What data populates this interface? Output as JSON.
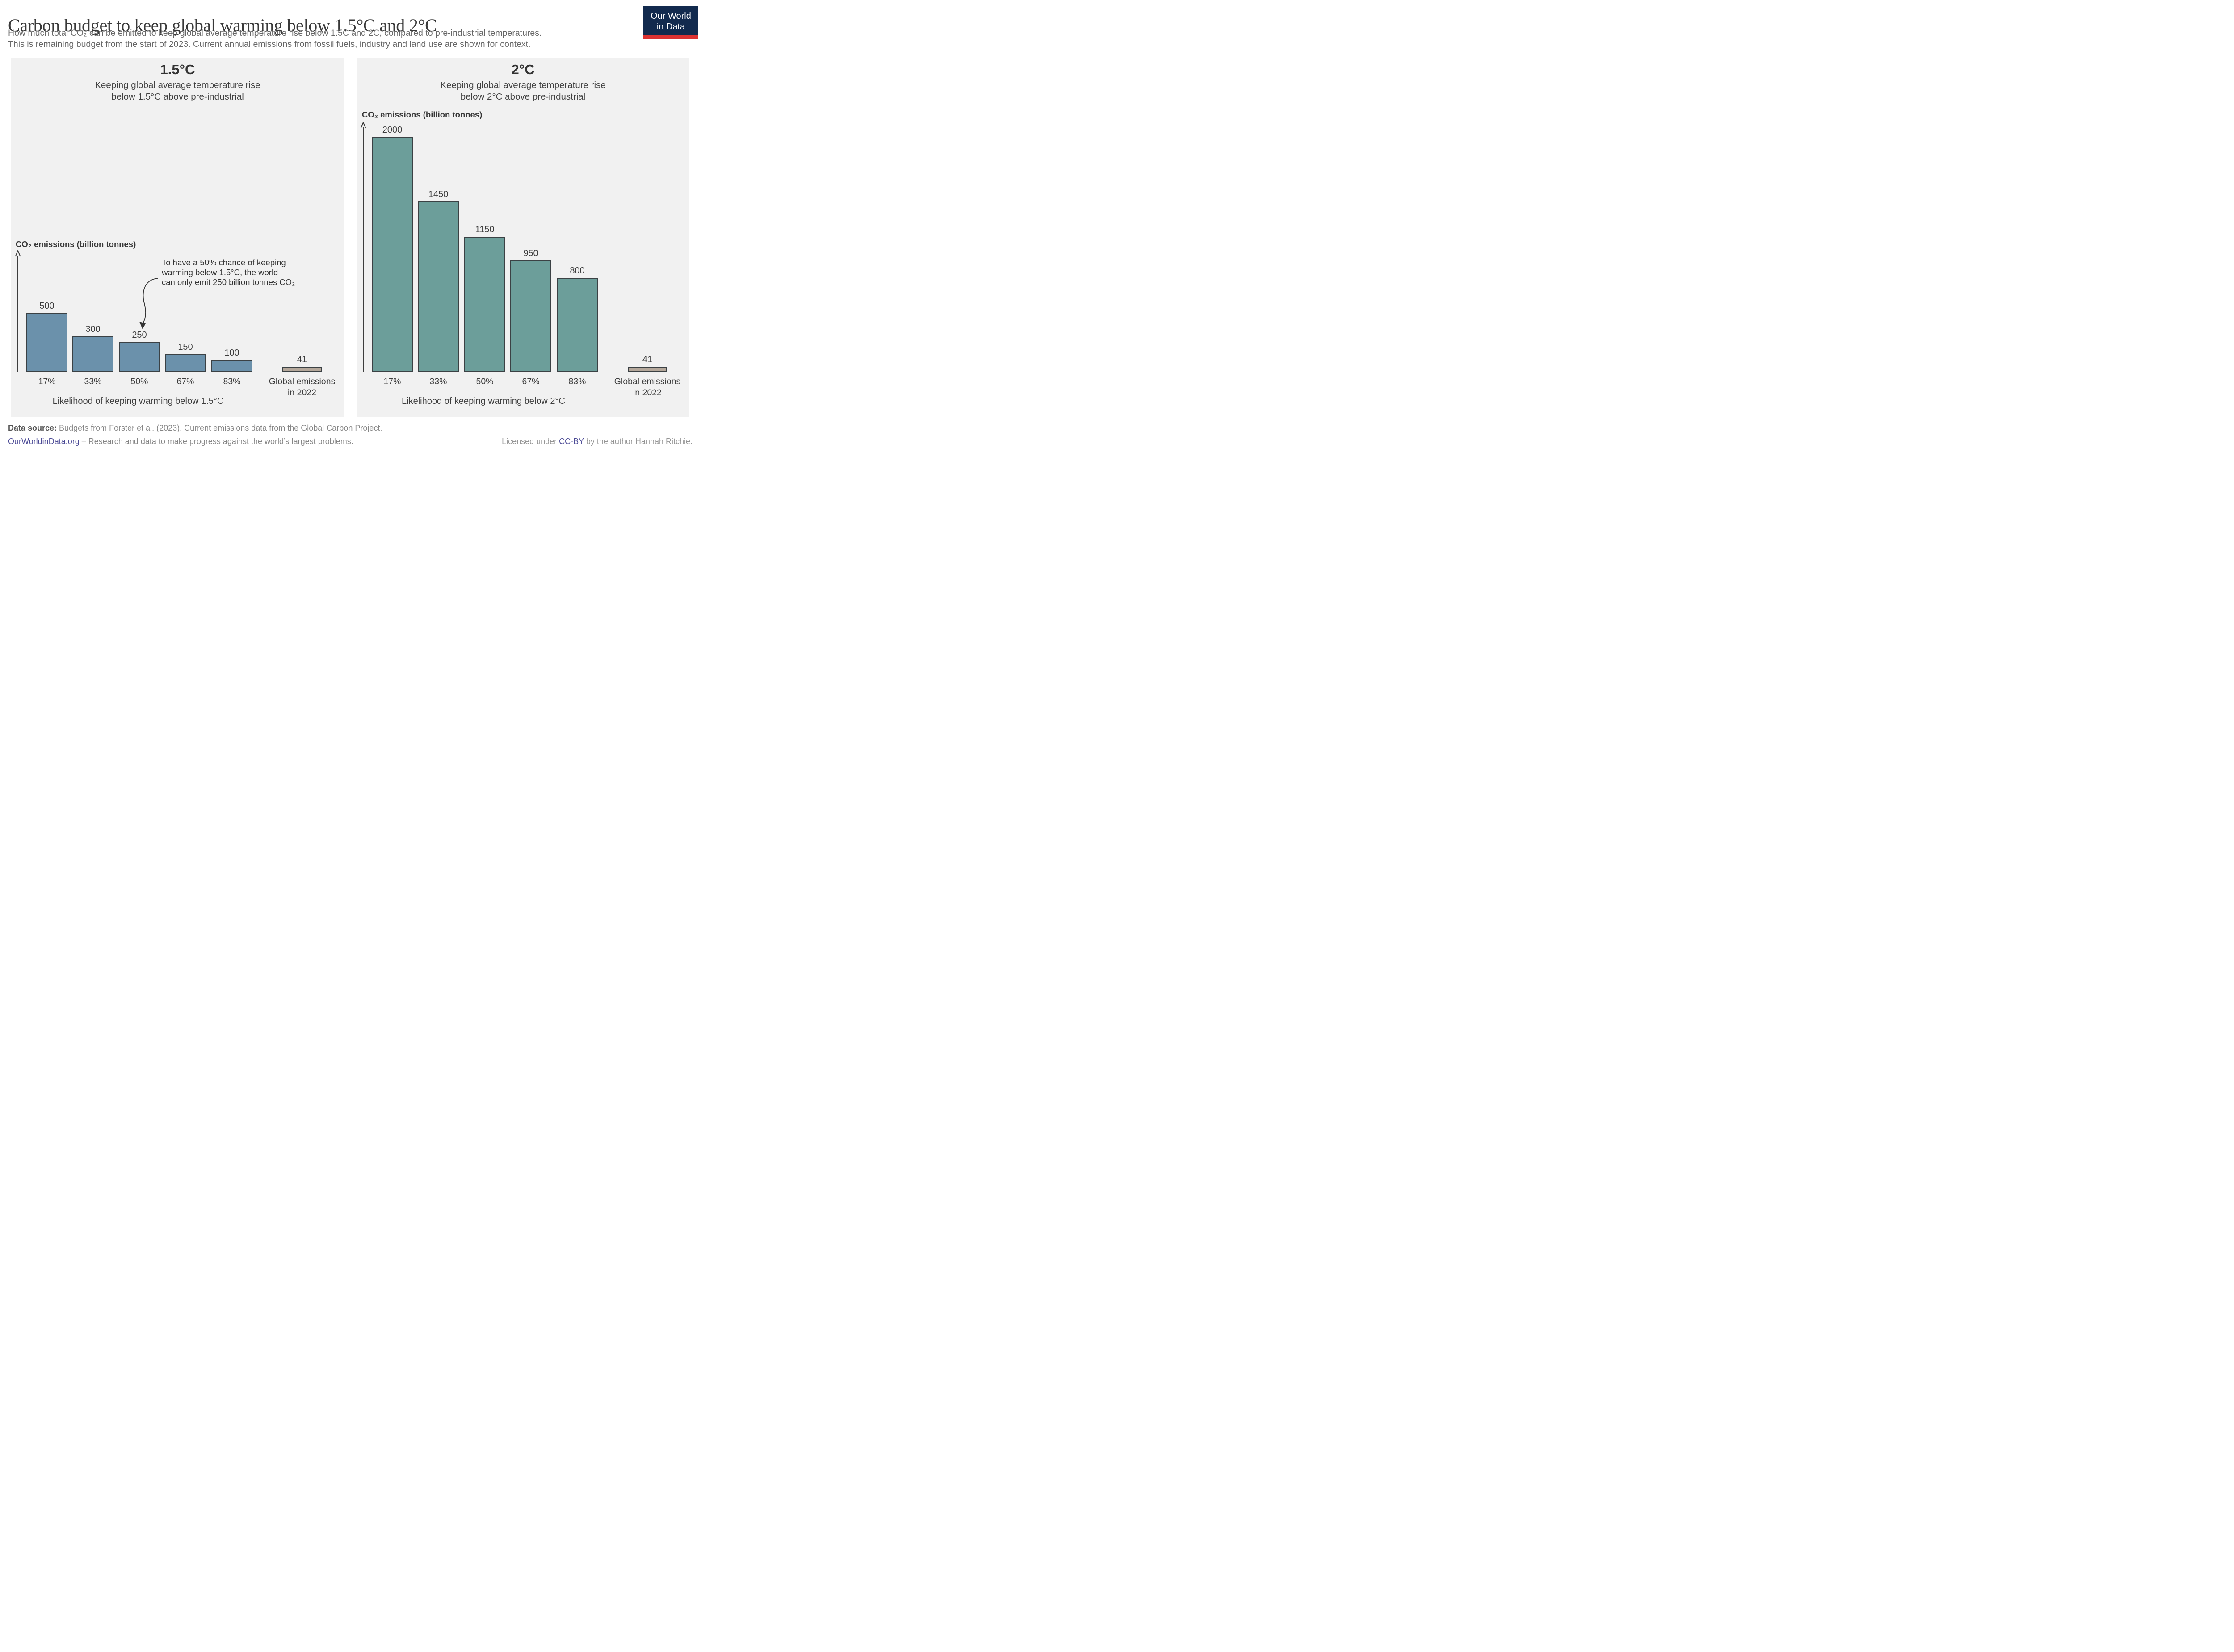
{
  "header": {
    "title": "Carbon budget to keep global warming below 1.5°C and 2°C",
    "subtitle_lines": [
      "How much total CO₂ can be emitted to keep global average temperature rise below 1.5C and 2C, compared to pre-industrial temperatures.",
      "This is remaining budget from the start of 2023. Current annual emissions from fossil fuels, industry and land use are shown for context."
    ],
    "logo": {
      "line1": "Our World",
      "line2": "in Data",
      "bg_color": "#122a4e",
      "stripe_color": "#dc3232"
    }
  },
  "chart_data": [
    {
      "type": "bar",
      "title": "1.5°C",
      "subtitle_lines": [
        "Keeping global average temperature rise",
        "below 1.5°C above pre-industrial"
      ],
      "ylabel": "CO₂ emissions (billion tonnes)",
      "xlabel": "Likelihood of keeping warming below 1.5°C",
      "categories": [
        "17%",
        "33%",
        "50%",
        "67%",
        "83%",
        "Global emissions in 2022"
      ],
      "values": [
        500,
        300,
        250,
        150,
        100,
        41
      ],
      "tick_lines": [
        [
          "17%"
        ],
        [
          "33%"
        ],
        [
          "50%"
        ],
        [
          "67%"
        ],
        [
          "83%"
        ],
        [
          "Global emissions",
          "in 2022"
        ]
      ],
      "bar_colors": [
        "#6b91ab",
        "#6b91ab",
        "#6b91ab",
        "#6b91ab",
        "#6b91ab",
        "#b4a79a"
      ],
      "legend": "none",
      "grid": false,
      "annotation": {
        "lines": [
          "To have a 50% chance of keeping",
          "warming below 1.5°C, the world",
          "can only emit 250 billion tonnes CO₂"
        ],
        "target_category": "50%",
        "target_value": 250
      }
    },
    {
      "type": "bar",
      "title": "2°C",
      "subtitle_lines": [
        "Keeping global average temperature rise",
        "below 2°C above pre-industrial"
      ],
      "ylabel": "CO₂ emissions (billion tonnes)",
      "xlabel": "Likelihood of keeping warming below 2°C",
      "categories": [
        "17%",
        "33%",
        "50%",
        "67%",
        "83%",
        "Global emissions in 2022"
      ],
      "values": [
        2000,
        1450,
        1150,
        950,
        800,
        41
      ],
      "tick_lines": [
        [
          "17%"
        ],
        [
          "33%"
        ],
        [
          "50%"
        ],
        [
          "67%"
        ],
        [
          "83%"
        ],
        [
          "Global emissions",
          "in 2022"
        ]
      ],
      "bar_colors": [
        "#6c9e9a",
        "#6c9e9a",
        "#6c9e9a",
        "#6c9e9a",
        "#6c9e9a",
        "#b4a79a"
      ],
      "legend": "none",
      "grid": false
    }
  ],
  "colors": {
    "panel_background": "#f1f1f1",
    "bar_blue": "#6b91ab",
    "bar_teal": "#6c9e9a",
    "bar_context_tan": "#b4a79a",
    "bar_outline": "#3b4144",
    "link_indigo": "#4c4b96",
    "logo_navy": "#122a4e",
    "logo_red": "#dc3232"
  },
  "footer": {
    "data_source_label": "Data source:",
    "data_source_text": " Budgets from Forster et al. (2023). Current emissions data from the Global Carbon Project.",
    "owid_link": "OurWorldinData.org",
    "owid_text": " – Research and data to make progress against the world’s largest problems.",
    "license_prefix": "Licensed under ",
    "license_link": "CC-BY",
    "license_suffix": " by the author Hannah Ritchie."
  }
}
